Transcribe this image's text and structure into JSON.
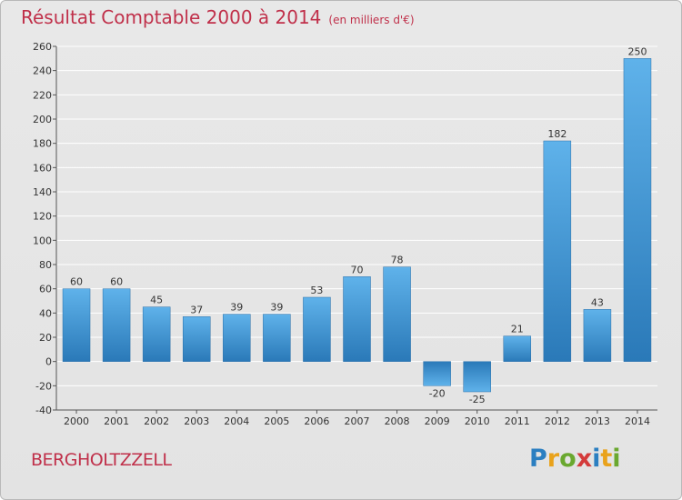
{
  "header": {
    "title": "Résultat Comptable 2000 à 2014",
    "subtitle": "(en milliers d'€)"
  },
  "footer": {
    "commune": "BERGHOLTZZELL",
    "logo": "Proxiti"
  },
  "colors": {
    "title": "#c0304a",
    "bar_light": "#5aaee6",
    "bar_dark": "#2f7fbf",
    "grid": "#ffffff",
    "background": "#e6e6e6"
  },
  "chart_data": {
    "type": "bar",
    "categories": [
      "2000",
      "2001",
      "2002",
      "2003",
      "2004",
      "2005",
      "2006",
      "2007",
      "2008",
      "2009",
      "2010",
      "2011",
      "2012",
      "2013",
      "2014"
    ],
    "values": [
      60,
      60,
      45,
      37,
      39,
      39,
      53,
      70,
      78,
      -20,
      -25,
      21,
      182,
      43,
      250
    ],
    "title": "Résultat Comptable 2000 à 2014",
    "xlabel": "",
    "ylabel": "",
    "ylim": [
      -40,
      260
    ],
    "yticks": [
      -40,
      -20,
      0,
      20,
      40,
      60,
      80,
      100,
      120,
      140,
      160,
      180,
      200,
      220,
      240,
      260
    ],
    "grid": true
  }
}
